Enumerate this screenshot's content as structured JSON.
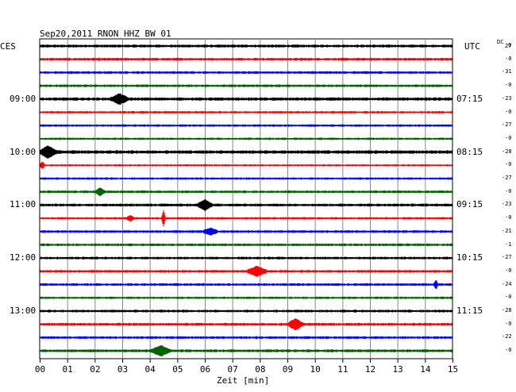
{
  "header": {
    "title": "Sep20,2011   RNON HHZ BW 01",
    "left_tz": "CES",
    "right_tz": "UTC",
    "dc_label": "DC",
    "dc_sub": "27"
  },
  "chart_data": {
    "type": "line",
    "title": "Sep20,2011   RNON HHZ BW 01",
    "xlabel": "Zeit [min]",
    "xlim": [
      0,
      15
    ],
    "x_ticks": [
      "00",
      "01",
      "02",
      "03",
      "04",
      "05",
      "06",
      "07",
      "08",
      "09",
      "10",
      "11",
      "12",
      "13",
      "14",
      "15"
    ],
    "left_time_labels": [
      {
        "label": "09:00",
        "row": 4
      },
      {
        "label": "10:00",
        "row": 8
      },
      {
        "label": "11:00",
        "row": 12
      },
      {
        "label": "12:00",
        "row": 16
      },
      {
        "label": "13:00",
        "row": 20
      }
    ],
    "right_time_labels": [
      {
        "label": "07:15",
        "row": 4
      },
      {
        "label": "08:15",
        "row": 8
      },
      {
        "label": "09:15",
        "row": 12
      },
      {
        "label": "10:15",
        "row": 16
      },
      {
        "label": "11:15",
        "row": 20
      }
    ],
    "trace_colors": [
      "#000000",
      "#ff0000",
      "#0000ff",
      "#006400"
    ],
    "dc_offsets": [
      "0",
      "-0",
      "-31",
      "-0",
      "-23",
      "-0",
      "-27",
      "-0",
      "-28",
      "-0",
      "-27",
      "-0",
      "-23",
      "-0",
      "-21",
      "-1",
      "-27",
      "-0",
      "-24",
      "-0",
      "-28",
      "-0",
      "-22",
      "-0"
    ],
    "traces": [
      {
        "amp": 1.0,
        "events": []
      },
      {
        "amp": 1.0,
        "events": []
      },
      {
        "amp": 0.9,
        "events": []
      },
      {
        "amp": 0.9,
        "events": []
      },
      {
        "amp": 1.1,
        "events": [
          {
            "min": 2.9,
            "amp": 3.5,
            "dur": 0.35
          }
        ]
      },
      {
        "amp": 0.8,
        "events": []
      },
      {
        "amp": 0.8,
        "events": []
      },
      {
        "amp": 0.8,
        "events": []
      },
      {
        "amp": 1.2,
        "events": [
          {
            "min": 0.3,
            "amp": 4.0,
            "dur": 0.35
          }
        ]
      },
      {
        "amp": 0.7,
        "events": [
          {
            "min": 0.1,
            "amp": 2.5,
            "dur": 0.1
          }
        ]
      },
      {
        "amp": 0.8,
        "events": []
      },
      {
        "amp": 0.9,
        "events": [
          {
            "min": 2.2,
            "amp": 2.5,
            "dur": 0.2
          }
        ]
      },
      {
        "amp": 1.0,
        "events": [
          {
            "min": 6.0,
            "amp": 3.5,
            "dur": 0.3
          }
        ]
      },
      {
        "amp": 0.8,
        "events": [
          {
            "min": 4.5,
            "amp": 6.0,
            "dur": 0.08
          },
          {
            "min": 3.3,
            "amp": 2.0,
            "dur": 0.15
          }
        ]
      },
      {
        "amp": 0.9,
        "events": [
          {
            "min": 6.2,
            "amp": 2.2,
            "dur": 0.3
          }
        ]
      },
      {
        "amp": 0.9,
        "events": []
      },
      {
        "amp": 0.9,
        "events": []
      },
      {
        "amp": 0.9,
        "events": [
          {
            "min": 7.9,
            "amp": 3.5,
            "dur": 0.4
          }
        ]
      },
      {
        "amp": 0.9,
        "events": [
          {
            "min": 14.4,
            "amp": 3.0,
            "dur": 0.08
          }
        ]
      },
      {
        "amp": 0.8,
        "events": []
      },
      {
        "amp": 0.9,
        "events": []
      },
      {
        "amp": 1.0,
        "events": [
          {
            "min": 9.3,
            "amp": 4.0,
            "dur": 0.3
          }
        ]
      },
      {
        "amp": 0.9,
        "events": []
      },
      {
        "amp": 1.0,
        "events": [
          {
            "min": 4.4,
            "amp": 3.5,
            "dur": 0.4
          }
        ]
      }
    ]
  }
}
